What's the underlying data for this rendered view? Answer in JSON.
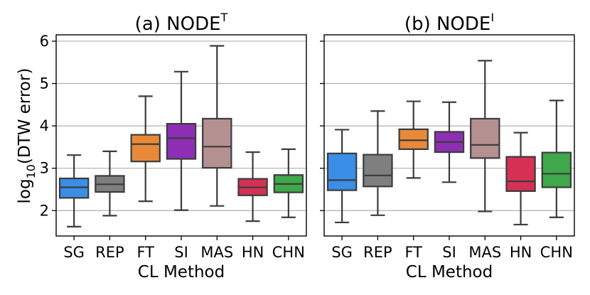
{
  "chart_data": [
    {
      "type": "box",
      "title": "(a) NODE",
      "title_superscript": "T",
      "xlabel": "CL Method",
      "ylabel_prefix": "log",
      "ylabel_subscript": "10",
      "ylabel_suffix": "(DTW error)",
      "ylim": [
        1.4,
        6.15
      ],
      "yticks": [
        2,
        3,
        4,
        5,
        6
      ],
      "grid": true,
      "categories": [
        "SG",
        "REP",
        "FT",
        "SI",
        "MAS",
        "HN",
        "CHN"
      ],
      "colors": [
        "#3a8ee6",
        "#7f7f7f",
        "#e8893a",
        "#8e2eb5",
        "#b59090",
        "#d63055",
        "#3ea84a"
      ],
      "boxes": [
        {
          "whislo": 1.62,
          "q1": 2.3,
          "med": 2.55,
          "q3": 2.76,
          "whishi": 3.31
        },
        {
          "whislo": 1.88,
          "q1": 2.44,
          "med": 2.62,
          "q3": 2.82,
          "whishi": 3.4
        },
        {
          "whislo": 2.22,
          "q1": 3.16,
          "med": 3.57,
          "q3": 3.79,
          "whishi": 4.7
        },
        {
          "whislo": 2.01,
          "q1": 3.22,
          "med": 3.71,
          "q3": 4.05,
          "whishi": 5.28
        },
        {
          "whislo": 2.11,
          "q1": 3.01,
          "med": 3.51,
          "q3": 4.17,
          "whishi": 5.89
        },
        {
          "whislo": 1.75,
          "q1": 2.36,
          "med": 2.55,
          "q3": 2.75,
          "whishi": 3.38
        },
        {
          "whislo": 1.84,
          "q1": 2.43,
          "med": 2.63,
          "q3": 2.84,
          "whishi": 3.45
        }
      ]
    },
    {
      "type": "box",
      "title": "(b) NODE",
      "title_superscript": "I",
      "xlabel": "CL Method",
      "ylim": [
        1.4,
        6.15
      ],
      "yticks": [
        2,
        3,
        4,
        5,
        6
      ],
      "grid": true,
      "sharey": true,
      "categories": [
        "SG",
        "REP",
        "FT",
        "SI",
        "MAS",
        "HN",
        "CHN"
      ],
      "colors": [
        "#3a8ee6",
        "#7f7f7f",
        "#e8893a",
        "#8e2eb5",
        "#b59090",
        "#d63055",
        "#3ea84a"
      ],
      "boxes": [
        {
          "whislo": 1.72,
          "q1": 2.48,
          "med": 2.72,
          "q3": 3.35,
          "whishi": 3.91
        },
        {
          "whislo": 1.89,
          "q1": 2.57,
          "med": 2.83,
          "q3": 3.32,
          "whishi": 4.35
        },
        {
          "whislo": 2.77,
          "q1": 3.45,
          "med": 3.66,
          "q3": 3.92,
          "whishi": 4.58
        },
        {
          "whislo": 2.67,
          "q1": 3.38,
          "med": 3.62,
          "q3": 3.86,
          "whishi": 4.56
        },
        {
          "whislo": 1.98,
          "q1": 3.24,
          "med": 3.55,
          "q3": 4.17,
          "whishi": 5.54
        },
        {
          "whislo": 1.67,
          "q1": 2.46,
          "med": 2.69,
          "q3": 3.27,
          "whishi": 3.84
        },
        {
          "whislo": 1.84,
          "q1": 2.55,
          "med": 2.87,
          "q3": 3.37,
          "whishi": 4.6
        }
      ]
    }
  ]
}
